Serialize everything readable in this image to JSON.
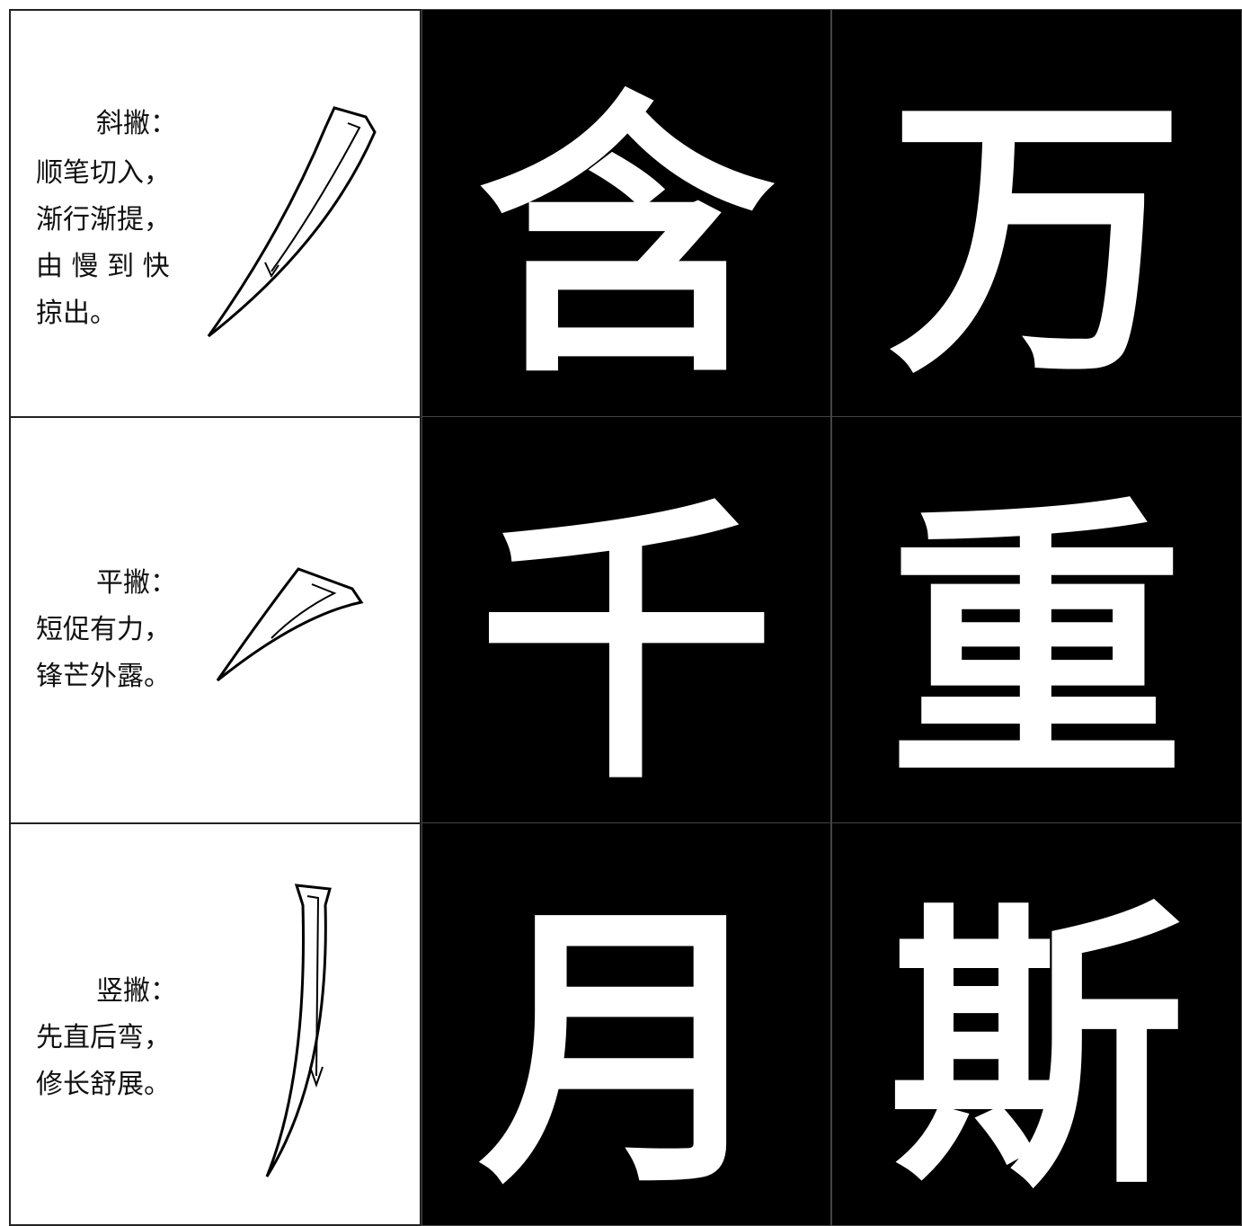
{
  "rows": [
    {
      "lines": [
        "斜撇：",
        "顺笔切入，",
        "渐行渐提，",
        "由 慢 到 快",
        "掠出。"
      ],
      "characters": [
        "含",
        "万"
      ]
    },
    {
      "lines": [
        "平撇：",
        "短促有力，",
        "锋芒外露。"
      ],
      "characters": [
        "千",
        "重"
      ]
    },
    {
      "lines": [
        "竖撇：",
        "先直后弯，",
        "修长舒展。"
      ],
      "characters": [
        "月",
        "斯"
      ]
    }
  ]
}
